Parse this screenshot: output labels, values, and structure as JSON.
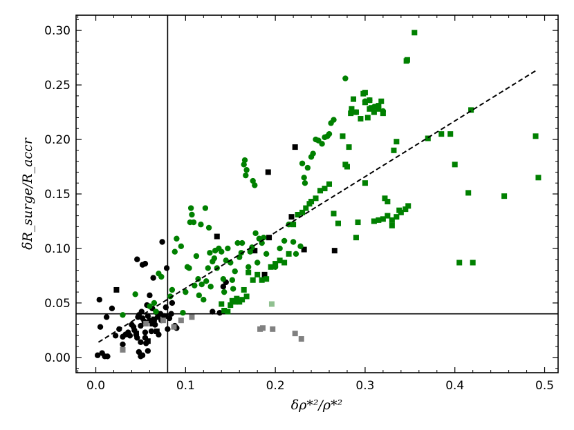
{
  "chart_data": {
    "type": "scatter",
    "xlabel": "δρ*²/ρ*²",
    "ylabel": "δR_surge/R_accr",
    "xlim": [
      -0.022,
      0.515
    ],
    "ylim": [
      -0.014,
      0.314
    ],
    "grid": false,
    "x_ticks": [
      "0.0",
      "0.1",
      "0.2",
      "0.3",
      "0.4",
      "0.5"
    ],
    "y_ticks": [
      "0.00",
      "0.05",
      "0.10",
      "0.15",
      "0.20",
      "0.25",
      "0.30"
    ],
    "colors": {
      "black": "#000000",
      "green": "#008000",
      "grey": "#808080",
      "lightgreen": "#90c090"
    },
    "reference_lines": {
      "vertical_x": 0.08,
      "horizontal_y": 0.04
    },
    "fit_line": {
      "x": [
        0.003,
        0.49
      ],
      "y": [
        0.014,
        0.263
      ],
      "style": "dashed"
    },
    "series": [
      {
        "marker": "circle",
        "color": "black",
        "points": [
          [
            0.002,
            0.002
          ],
          [
            0.004,
            0.053
          ],
          [
            0.007,
            0.004
          ],
          [
            0.01,
            0.001
          ],
          [
            0.013,
            0.001
          ],
          [
            0.005,
            0.028
          ],
          [
            0.012,
            0.037
          ],
          [
            0.018,
            0.045
          ],
          [
            0.022,
            0.02
          ],
          [
            0.026,
            0.026
          ],
          [
            0.03,
            0.019
          ],
          [
            0.03,
            0.012
          ],
          [
            0.033,
            0.021
          ],
          [
            0.036,
            0.023
          ],
          [
            0.038,
            0.02
          ],
          [
            0.04,
            0.03
          ],
          [
            0.042,
            0.028
          ],
          [
            0.043,
            0.025
          ],
          [
            0.045,
            0.021
          ],
          [
            0.046,
            0.018
          ],
          [
            0.047,
            0.037
          ],
          [
            0.048,
            0.039
          ],
          [
            0.05,
            0.029
          ],
          [
            0.05,
            0.014
          ],
          [
            0.051,
            0.042
          ],
          [
            0.052,
            0.036
          ],
          [
            0.054,
            0.033
          ],
          [
            0.055,
            0.023
          ],
          [
            0.055,
            0.018
          ],
          [
            0.056,
            0.013
          ],
          [
            0.057,
            0.048
          ],
          [
            0.058,
            0.038
          ],
          [
            0.06,
            0.034
          ],
          [
            0.062,
            0.024
          ],
          [
            0.063,
            0.045
          ],
          [
            0.064,
            0.073
          ],
          [
            0.066,
            0.03
          ],
          [
            0.068,
            0.041
          ],
          [
            0.069,
            0.037
          ],
          [
            0.07,
            0.021
          ],
          [
            0.072,
            0.04
          ],
          [
            0.073,
            0.034
          ],
          [
            0.076,
            0.038
          ],
          [
            0.078,
            0.046
          ],
          [
            0.079,
            0.082
          ],
          [
            0.08,
            0.026
          ],
          [
            0.082,
            0.036
          ],
          [
            0.084,
            0.04
          ],
          [
            0.046,
            0.09
          ],
          [
            0.052,
            0.085
          ],
          [
            0.055,
            0.086
          ],
          [
            0.06,
            0.057
          ],
          [
            0.067,
            0.042
          ],
          [
            0.074,
            0.106
          ],
          [
            0.048,
            0.005
          ],
          [
            0.05,
            0.001
          ],
          [
            0.052,
            0.002
          ],
          [
            0.058,
            0.006
          ],
          [
            0.085,
            0.05
          ],
          [
            0.088,
            0.029
          ],
          [
            0.09,
            0.027
          ],
          [
            0.13,
            0.042
          ],
          [
            0.138,
            0.041
          ],
          [
            0.142,
            0.065
          ],
          [
            0.145,
            0.069
          ]
        ]
      },
      {
        "marker": "square",
        "color": "black",
        "points": [
          [
            0.023,
            0.062
          ],
          [
            0.045,
            0.022
          ],
          [
            0.058,
            0.015
          ],
          [
            0.063,
            0.031
          ],
          [
            0.065,
            0.035
          ],
          [
            0.068,
            0.024
          ],
          [
            0.078,
            0.038
          ],
          [
            0.135,
            0.111
          ],
          [
            0.177,
            0.098
          ],
          [
            0.188,
            0.076
          ],
          [
            0.193,
            0.11
          ],
          [
            0.192,
            0.17
          ],
          [
            0.218,
            0.129
          ],
          [
            0.222,
            0.193
          ],
          [
            0.232,
            0.099
          ],
          [
            0.266,
            0.098
          ]
        ]
      },
      {
        "marker": "square",
        "color": "grey",
        "points": [
          [
            0.03,
            0.007
          ],
          [
            0.056,
            0.031
          ],
          [
            0.075,
            0.034
          ],
          [
            0.087,
            0.028
          ],
          [
            0.095,
            0.034
          ],
          [
            0.107,
            0.037
          ],
          [
            0.183,
            0.026
          ],
          [
            0.186,
            0.027
          ],
          [
            0.197,
            0.026
          ],
          [
            0.222,
            0.022
          ],
          [
            0.229,
            0.017
          ]
        ]
      },
      {
        "marker": "square",
        "color": "lightgreen",
        "points": [
          [
            0.196,
            0.049
          ]
        ]
      },
      {
        "marker": "circle",
        "color": "green",
        "points": [
          [
            0.03,
            0.039
          ],
          [
            0.044,
            0.058
          ],
          [
            0.06,
            0.047
          ],
          [
            0.065,
            0.05
          ],
          [
            0.067,
            0.042
          ],
          [
            0.07,
            0.077
          ],
          [
            0.073,
            0.074
          ],
          [
            0.083,
            0.056
          ],
          [
            0.085,
            0.062
          ],
          [
            0.088,
            0.097
          ],
          [
            0.09,
            0.109
          ],
          [
            0.095,
            0.102
          ],
          [
            0.097,
            0.041
          ],
          [
            0.1,
            0.06
          ],
          [
            0.102,
            0.083
          ],
          [
            0.104,
            0.082
          ],
          [
            0.105,
            0.124
          ],
          [
            0.106,
            0.137
          ],
          [
            0.107,
            0.131
          ],
          [
            0.109,
            0.124
          ],
          [
            0.11,
            0.066
          ],
          [
            0.112,
            0.093
          ],
          [
            0.114,
            0.072
          ],
          [
            0.115,
            0.057
          ],
          [
            0.117,
            0.122
          ],
          [
            0.118,
            0.067
          ],
          [
            0.12,
            0.053
          ],
          [
            0.122,
            0.137
          ],
          [
            0.123,
            0.07
          ],
          [
            0.125,
            0.082
          ],
          [
            0.126,
            0.119
          ],
          [
            0.127,
            0.096
          ],
          [
            0.128,
            0.065
          ],
          [
            0.13,
            0.088
          ],
          [
            0.132,
            0.091
          ],
          [
            0.133,
            0.098
          ],
          [
            0.135,
            0.082
          ],
          [
            0.137,
            0.1
          ],
          [
            0.14,
            0.097
          ],
          [
            0.142,
            0.072
          ],
          [
            0.143,
            0.06
          ],
          [
            0.145,
            0.089
          ],
          [
            0.147,
            0.1
          ],
          [
            0.15,
            0.087
          ],
          [
            0.152,
            0.071
          ],
          [
            0.153,
            0.063
          ],
          [
            0.155,
            0.079
          ],
          [
            0.158,
            0.105
          ],
          [
            0.16,
            0.092
          ],
          [
            0.162,
            0.096
          ],
          [
            0.163,
            0.105
          ],
          [
            0.165,
            0.177
          ],
          [
            0.166,
            0.181
          ],
          [
            0.167,
            0.167
          ],
          [
            0.168,
            0.172
          ],
          [
            0.17,
            0.083
          ],
          [
            0.172,
            0.097
          ],
          [
            0.174,
            0.101
          ],
          [
            0.175,
            0.162
          ],
          [
            0.177,
            0.158
          ],
          [
            0.178,
            0.114
          ],
          [
            0.18,
            0.087
          ],
          [
            0.182,
            0.109
          ],
          [
            0.185,
            0.105
          ],
          [
            0.187,
            0.11
          ],
          [
            0.19,
            0.095
          ],
          [
            0.2,
            0.083
          ],
          [
            0.205,
            0.1
          ],
          [
            0.21,
            0.107
          ],
          [
            0.215,
            0.122
          ],
          [
            0.22,
            0.106
          ],
          [
            0.223,
            0.095
          ],
          [
            0.228,
            0.102
          ],
          [
            0.23,
            0.178
          ],
          [
            0.232,
            0.165
          ],
          [
            0.233,
            0.16
          ],
          [
            0.236,
            0.174
          ],
          [
            0.24,
            0.184
          ],
          [
            0.242,
            0.187
          ],
          [
            0.245,
            0.2
          ],
          [
            0.248,
            0.199
          ],
          [
            0.252,
            0.196
          ],
          [
            0.255,
            0.202
          ],
          [
            0.258,
            0.203
          ],
          [
            0.26,
            0.205
          ],
          [
            0.262,
            0.215
          ],
          [
            0.265,
            0.218
          ],
          [
            0.278,
            0.256
          ],
          [
            0.29,
            0.225
          ],
          [
            0.3,
            0.235
          ],
          [
            0.305,
            0.236
          ],
          [
            0.31,
            0.23
          ],
          [
            0.32,
            0.226
          ]
        ]
      },
      {
        "marker": "square",
        "color": "green",
        "points": [
          [
            0.14,
            0.049
          ],
          [
            0.143,
            0.043
          ],
          [
            0.147,
            0.042
          ],
          [
            0.15,
            0.048
          ],
          [
            0.152,
            0.052
          ],
          [
            0.155,
            0.051
          ],
          [
            0.157,
            0.054
          ],
          [
            0.16,
            0.051
          ],
          [
            0.163,
            0.053
          ],
          [
            0.165,
            0.062
          ],
          [
            0.168,
            0.056
          ],
          [
            0.17,
            0.078
          ],
          [
            0.175,
            0.071
          ],
          [
            0.18,
            0.076
          ],
          [
            0.185,
            0.071
          ],
          [
            0.19,
            0.072
          ],
          [
            0.195,
            0.083
          ],
          [
            0.2,
            0.086
          ],
          [
            0.205,
            0.089
          ],
          [
            0.21,
            0.087
          ],
          [
            0.215,
            0.095
          ],
          [
            0.22,
            0.122
          ],
          [
            0.225,
            0.131
          ],
          [
            0.23,
            0.133
          ],
          [
            0.234,
            0.137
          ],
          [
            0.238,
            0.141
          ],
          [
            0.24,
            0.143
          ],
          [
            0.245,
            0.146
          ],
          [
            0.25,
            0.153
          ],
          [
            0.255,
            0.155
          ],
          [
            0.26,
            0.159
          ],
          [
            0.265,
            0.132
          ],
          [
            0.27,
            0.123
          ],
          [
            0.275,
            0.203
          ],
          [
            0.278,
            0.177
          ],
          [
            0.28,
            0.175
          ],
          [
            0.282,
            0.193
          ],
          [
            0.285,
            0.228
          ],
          [
            0.287,
            0.237
          ],
          [
            0.29,
            0.11
          ],
          [
            0.292,
            0.124
          ],
          [
            0.295,
            0.219
          ],
          [
            0.298,
            0.242
          ],
          [
            0.3,
            0.234
          ],
          [
            0.303,
            0.22
          ],
          [
            0.305,
            0.228
          ],
          [
            0.307,
            0.229
          ],
          [
            0.31,
            0.225
          ],
          [
            0.312,
            0.23
          ],
          [
            0.315,
            0.231
          ],
          [
            0.318,
            0.235
          ],
          [
            0.32,
            0.224
          ],
          [
            0.322,
            0.146
          ],
          [
            0.325,
            0.143
          ],
          [
            0.33,
            0.121
          ],
          [
            0.332,
            0.19
          ],
          [
            0.335,
            0.198
          ],
          [
            0.338,
            0.135
          ],
          [
            0.34,
            0.133
          ],
          [
            0.345,
            0.136
          ],
          [
            0.348,
            0.139
          ],
          [
            0.346,
            0.272
          ],
          [
            0.347,
            0.273
          ],
          [
            0.355,
            0.298
          ],
          [
            0.3,
            0.16
          ],
          [
            0.31,
            0.125
          ],
          [
            0.315,
            0.126
          ],
          [
            0.32,
            0.127
          ],
          [
            0.325,
            0.13
          ],
          [
            0.33,
            0.126
          ],
          [
            0.335,
            0.129
          ],
          [
            0.37,
            0.201
          ],
          [
            0.385,
            0.205
          ],
          [
            0.395,
            0.205
          ],
          [
            0.4,
            0.177
          ],
          [
            0.405,
            0.087
          ],
          [
            0.415,
            0.151
          ],
          [
            0.42,
            0.087
          ],
          [
            0.418,
            0.227
          ],
          [
            0.455,
            0.148
          ],
          [
            0.49,
            0.203
          ],
          [
            0.493,
            0.165
          ],
          [
            0.305,
            0.236
          ],
          [
            0.315,
            0.228
          ],
          [
            0.29,
            0.225
          ],
          [
            0.284,
            0.224
          ],
          [
            0.3,
            0.243
          ]
        ]
      }
    ]
  }
}
